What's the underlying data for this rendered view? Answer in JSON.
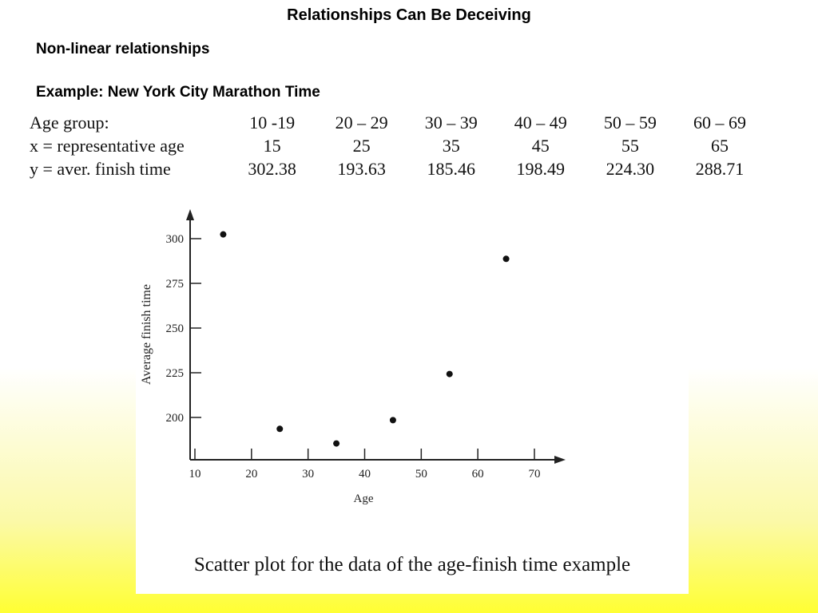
{
  "slide": {
    "title": "Relationships Can Be Deceiving",
    "subtitle": "Non-linear relationships",
    "example": "Example:  New York City Marathon Time"
  },
  "table": {
    "rows": [
      {
        "label": "Age group:",
        "cells": [
          "10 -19",
          "20 – 29",
          "30 – 39",
          "40 – 49",
          "50 – 59",
          "60 – 69"
        ]
      },
      {
        "label": "x = representative age",
        "cells": [
          "15",
          "25",
          "35",
          "45",
          "55",
          "65"
        ]
      },
      {
        "label": "y = aver. finish time",
        "cells": [
          "302.38",
          "193.63",
          "185.46",
          "198.49",
          "224.30",
          "288.71"
        ]
      }
    ]
  },
  "chart_data": {
    "type": "scatter",
    "x": [
      15,
      25,
      35,
      45,
      55,
      65
    ],
    "y": [
      302.38,
      193.63,
      185.46,
      198.49,
      224.3,
      288.71
    ],
    "xlabel": "Age",
    "ylabel": "Average finish time",
    "xticks": [
      10,
      20,
      30,
      40,
      50,
      60,
      70
    ],
    "yticks": [
      200,
      225,
      250,
      275,
      300
    ],
    "xlim": [
      10,
      70
    ],
    "ylim": [
      185,
      300
    ],
    "grid": false,
    "caption": "Scatter plot for the data of the age-finish time example"
  }
}
